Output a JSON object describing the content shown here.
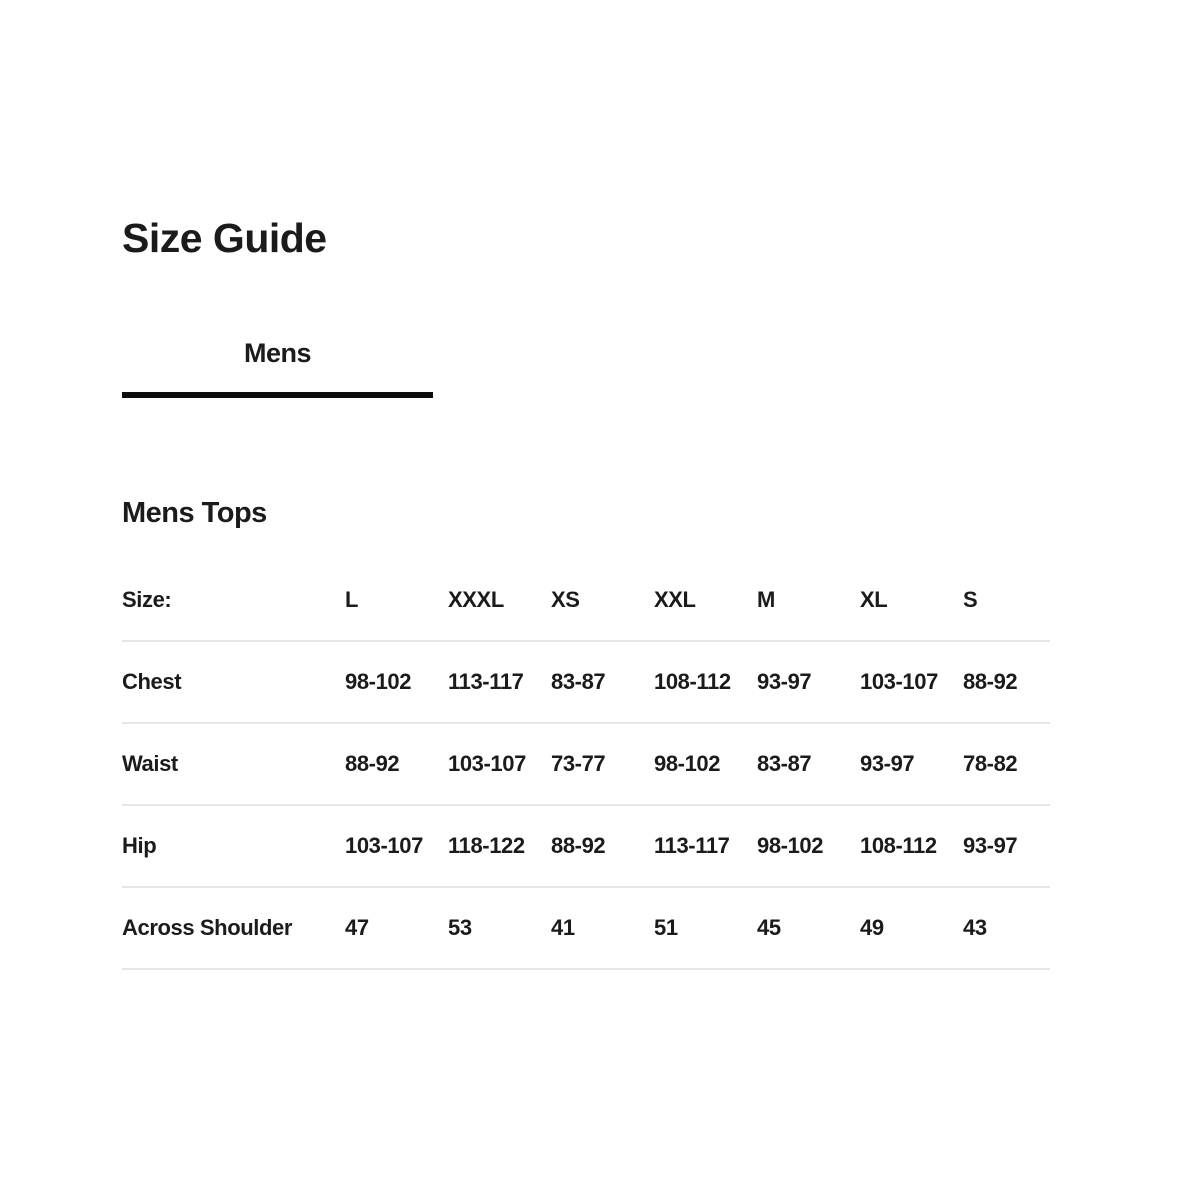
{
  "page": {
    "title": "Size Guide"
  },
  "tabs": [
    {
      "label": "Mens",
      "active": true
    }
  ],
  "section": {
    "heading": "Mens Tops"
  },
  "size_table": {
    "header_label": "Size:",
    "columns": [
      "L",
      "XXXL",
      "XS",
      "XXL",
      "M",
      "XL",
      "S"
    ],
    "rows": [
      {
        "label": "Chest",
        "values": [
          "98-102",
          "113-117",
          "83-87",
          "108-112",
          "93-97",
          "103-107",
          "88-92"
        ]
      },
      {
        "label": "Waist",
        "values": [
          "88-92",
          "103-107",
          "73-77",
          "98-102",
          "83-87",
          "93-97",
          "78-82"
        ]
      },
      {
        "label": "Hip",
        "values": [
          "103-107",
          "118-122",
          "88-92",
          "113-117",
          "98-102",
          "108-112",
          "93-97"
        ]
      },
      {
        "label": "Across Shoulder",
        "values": [
          "47",
          "53",
          "41",
          "51",
          "45",
          "49",
          "43"
        ]
      }
    ]
  },
  "colors": {
    "text": "#1b1b1b",
    "tab_underline": "#0d0d0d",
    "divider": "#e7e7e5",
    "background": "#ffffff"
  }
}
